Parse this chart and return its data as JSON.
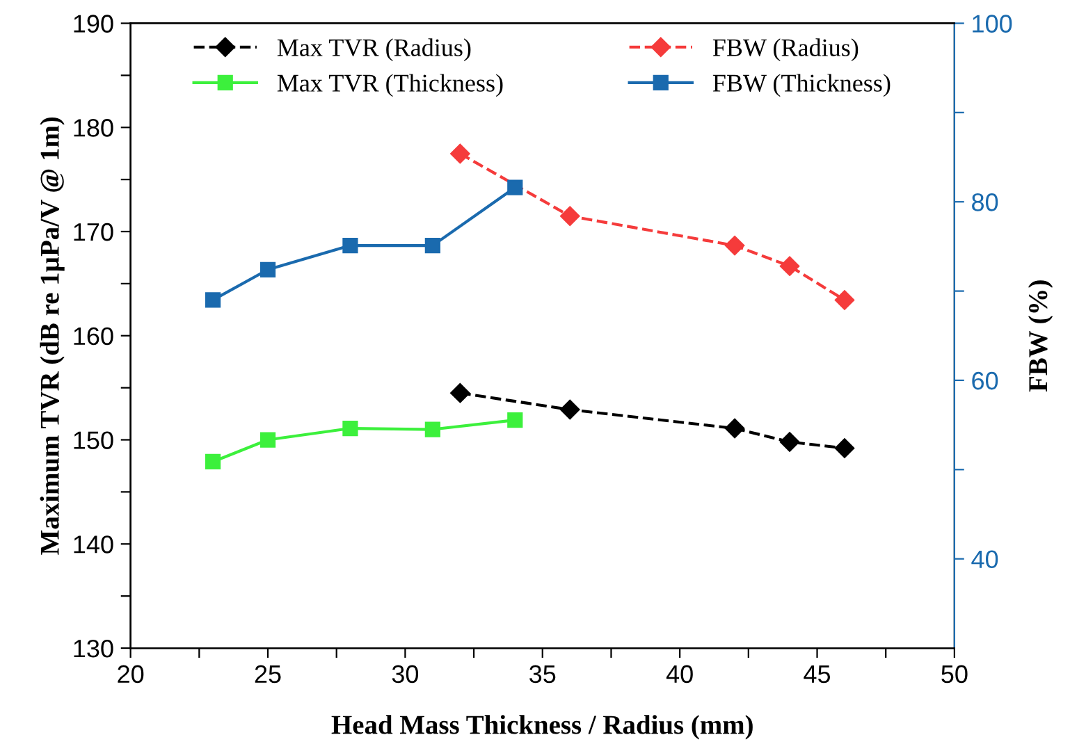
{
  "chart_data": {
    "type": "line",
    "xlabel": "Head Mass Thickness / Radius (mm)",
    "ylabel": "Maximum TVR (dB re 1µPa/V @ 1m)",
    "y2label": "FBW (%)",
    "xlim": [
      20,
      50
    ],
    "xticks": [
      20,
      {
        "value": 22.5,
        "label": null
      },
      25,
      {
        "value": 27.5,
        "label": null
      },
      30,
      {
        "value": 32.5,
        "label": null
      },
      35,
      {
        "value": 37.5,
        "label": null
      },
      40,
      {
        "value": 42.5,
        "label": null
      },
      45,
      {
        "value": 47.5,
        "label": null
      },
      50
    ],
    "ylim": [
      130,
      190
    ],
    "yticks": [
      130,
      {
        "value": 135,
        "label": null
      },
      140,
      {
        "value": 145,
        "label": null
      },
      150,
      {
        "value": 155,
        "label": null
      },
      160,
      {
        "value": 165,
        "label": null
      },
      170,
      {
        "value": 175,
        "label": null
      },
      180,
      {
        "value": 185,
        "label": null
      },
      190
    ],
    "y2lim": [
      30,
      100
    ],
    "y2ticks": [
      40,
      {
        "value": 50,
        "label": null
      },
      60,
      {
        "value": 70,
        "label": null
      },
      80,
      {
        "value": 90,
        "label": null
      },
      100
    ],
    "grid": false,
    "legend": "top",
    "series": [
      {
        "name": "Max TVR (Radius)",
        "color": "#000000",
        "marker": "diamond",
        "line_style": "dashed",
        "x": [
          32,
          36,
          42,
          44,
          46
        ],
        "values": [
          154.5,
          152.9,
          151.1,
          149.8,
          149.2
        ]
      },
      {
        "name": "FBW (Radius)",
        "color": "#f53b3b",
        "marker": "diamond",
        "line_style": "dashed",
        "axis": "y2",
        "x": [
          32,
          36,
          42,
          44,
          46
        ],
        "values": [
          85.4,
          78.4,
          75.1,
          72.8,
          69.0
        ]
      },
      {
        "name": "Max TVR (Thickness)",
        "color": "#3cf03c",
        "marker": "square",
        "line_style": "solid",
        "x": [
          23,
          25,
          28,
          31,
          34
        ],
        "values": [
          147.9,
          150.0,
          151.1,
          151.0,
          151.9
        ]
      },
      {
        "name": "FBW (Thickness)",
        "color": "#1a6aae",
        "marker": "square",
        "line_style": "solid",
        "axis": "y2",
        "x": [
          23,
          25,
          28,
          31,
          34
        ],
        "values": [
          69.0,
          72.4,
          75.1,
          75.1,
          81.6
        ]
      }
    ]
  }
}
